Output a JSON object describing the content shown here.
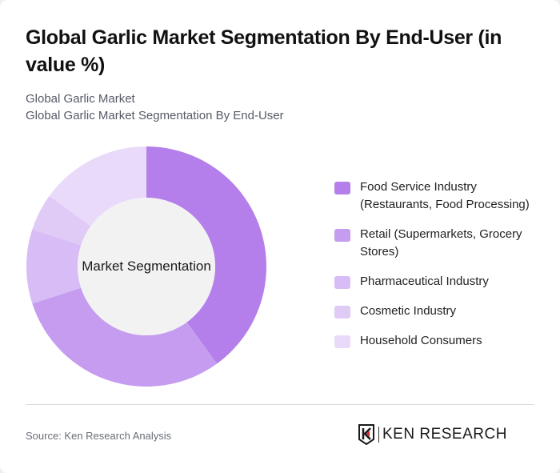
{
  "header": {
    "title": "Global Garlic Market Segmentation By End-User (in value %)",
    "subtitle_line1": "Global Garlic Market",
    "subtitle_line2": "Global Garlic Market Segmentation By End-User"
  },
  "chart": {
    "center_label": "Market Segmentation"
  },
  "legend": {
    "items": [
      {
        "label": "Food Service Industry (Restaurants, Food Processing)",
        "color": "#b47fea"
      },
      {
        "label": "Retail (Supermarkets, Grocery Stores)",
        "color": "#c59cef"
      },
      {
        "label": "Pharmaceutical Industry",
        "color": "#d8bcf5"
      },
      {
        "label": "Cosmetic Industry",
        "color": "#e0cbf7"
      },
      {
        "label": "Household Consumers",
        "color": "#e9dafa"
      }
    ]
  },
  "footer": {
    "source": "Source: Ken Research Analysis",
    "logo_text": "KEN RESEARCH"
  },
  "chart_data": {
    "type": "pie",
    "variant": "donut",
    "title": "Global Garlic Market Segmentation By End-User (in value %)",
    "subtitle": "Global Garlic Market Segmentation By End-User",
    "center_label": "Market Segmentation",
    "categories": [
      "Food Service Industry (Restaurants, Food Processing)",
      "Retail (Supermarkets, Grocery Stores)",
      "Pharmaceutical Industry",
      "Cosmetic Industry",
      "Household Consumers"
    ],
    "values": [
      40,
      30,
      10,
      5,
      15
    ],
    "colors": [
      "#b47fea",
      "#c59cef",
      "#d8bcf5",
      "#e0cbf7",
      "#e9dafa"
    ],
    "unit": "%",
    "start_angle": "12 o'clock, clockwise",
    "legend_position": "right",
    "source": "Source: Ken Research Analysis"
  }
}
